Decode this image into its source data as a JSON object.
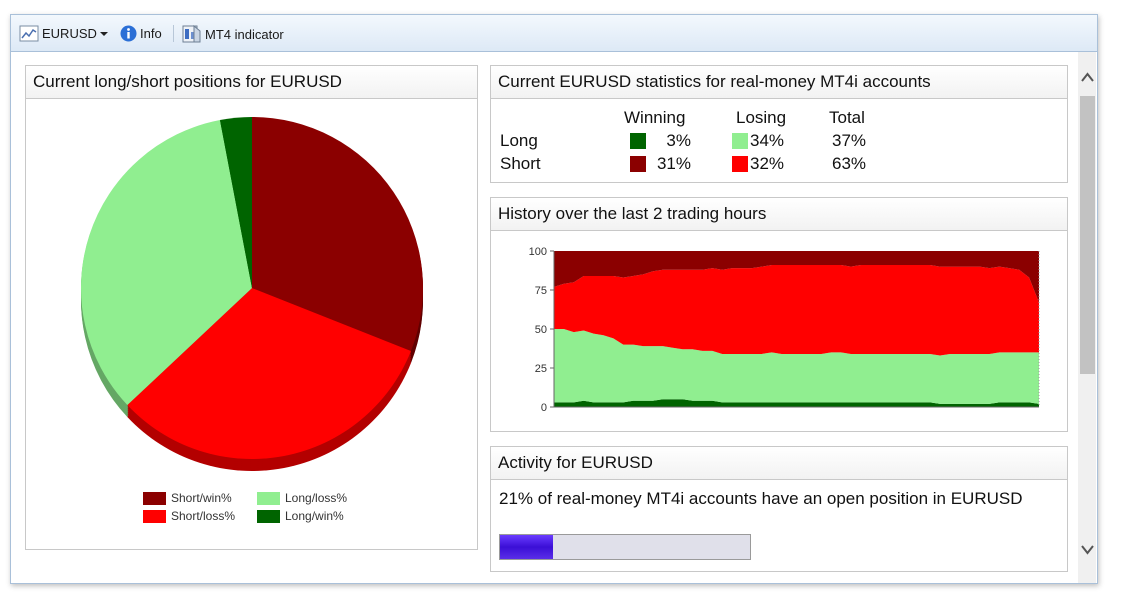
{
  "toolbar": {
    "symbol_label": "EURUSD",
    "info_label": "Info",
    "indicator_label": "MT4 indicator"
  },
  "pie_panel": {
    "title": "Current long/short positions for EURUSD",
    "legend": [
      {
        "label": "Short/win%",
        "color": "#8b0000"
      },
      {
        "label": "Long/loss%",
        "color": "#90ee90"
      },
      {
        "label": "Short/loss%",
        "color": "#ff0000"
      },
      {
        "label": "Long/win%",
        "color": "#006400"
      }
    ]
  },
  "stats_panel": {
    "title": "Current EURUSD statistics for real-money MT4i accounts",
    "col_winning": "Winning",
    "col_losing": "Losing",
    "col_total": "Total",
    "rows": [
      {
        "label": "Long",
        "winning": "3%",
        "losing": "34%",
        "total": "37%",
        "win_color": "#006400",
        "loss_color": "#90ee90"
      },
      {
        "label": "Short",
        "winning": "31%",
        "losing": "32%",
        "total": "63%",
        "win_color": "#8b0000",
        "loss_color": "#ff0000"
      }
    ]
  },
  "history_panel": {
    "title": "History over the last 2 trading hours"
  },
  "activity_panel": {
    "title": "Activity for EURUSD",
    "text": "21% of real-money MT4i accounts have an open position in EURUSD",
    "progress": 0.21
  },
  "chart_data": [
    {
      "type": "pie",
      "labels": [
        "Short/win%",
        "Short/loss%",
        "Long/loss%",
        "Long/win%"
      ],
      "values": [
        31,
        32,
        34,
        3
      ],
      "colors": [
        "#8b0000",
        "#ff0000",
        "#90ee90",
        "#006400"
      ],
      "legend": "bottom"
    },
    {
      "type": "area",
      "ylim": [
        0,
        100
      ],
      "yticks": [
        0,
        25,
        50,
        75,
        100
      ],
      "series": [
        {
          "name": "Long/win%",
          "color": "#006400",
          "values": [
            3,
            3,
            3,
            4,
            3,
            3,
            3,
            3,
            4,
            4,
            4,
            5,
            5,
            5,
            4,
            4,
            4,
            3,
            3,
            3,
            3,
            3,
            3,
            3,
            3,
            3,
            3,
            3,
            3,
            3,
            3,
            3,
            3,
            3,
            3,
            3,
            3,
            3,
            3,
            2,
            2,
            2,
            2,
            2,
            2,
            3,
            3,
            3,
            3,
            2
          ]
        },
        {
          "name": "Long/loss%",
          "color": "#90ee90",
          "values": [
            47,
            47,
            45,
            45,
            44,
            43,
            41,
            37,
            36,
            35,
            35,
            34,
            33,
            32,
            33,
            32,
            32,
            31,
            31,
            31,
            31,
            31,
            32,
            31,
            31,
            31,
            31,
            31,
            32,
            32,
            31,
            31,
            31,
            31,
            31,
            31,
            31,
            31,
            31,
            31,
            32,
            32,
            32,
            32,
            32,
            32,
            32,
            32,
            32,
            33
          ]
        },
        {
          "name": "Short/loss%",
          "color": "#ff0000",
          "values": [
            27,
            29,
            32,
            35,
            37,
            38,
            40,
            43,
            44,
            46,
            48,
            49,
            50,
            51,
            51,
            52,
            53,
            54,
            55,
            55,
            55,
            56,
            56,
            57,
            57,
            57,
            57,
            57,
            56,
            56,
            56,
            57,
            57,
            57,
            57,
            57,
            57,
            57,
            57,
            57,
            56,
            56,
            56,
            56,
            55,
            55,
            54,
            53,
            48,
            32
          ]
        },
        {
          "name": "Short/win%",
          "color": "#8b0000",
          "values": [
            23,
            21,
            20,
            16,
            16,
            16,
            16,
            17,
            16,
            15,
            13,
            12,
            12,
            12,
            12,
            12,
            11,
            12,
            11,
            11,
            11,
            10,
            9,
            9,
            9,
            9,
            9,
            9,
            9,
            9,
            10,
            9,
            9,
            9,
            9,
            9,
            9,
            9,
            9,
            10,
            10,
            10,
            10,
            10,
            11,
            10,
            11,
            12,
            17,
            33
          ]
        }
      ]
    }
  ]
}
